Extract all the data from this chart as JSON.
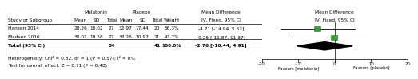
{
  "studies": [
    "Hansen 2014",
    "Madsen 2016"
  ],
  "melatonin_mean": [
    28.26,
    38.01
  ],
  "melatonin_sd": [
    18.02,
    19.58
  ],
  "melatonin_total": [
    27,
    27
  ],
  "placebo_mean": [
    32.97,
    38.26
  ],
  "placebo_sd": [
    17.44,
    20.97
  ],
  "placebo_total": [
    20,
    21
  ],
  "weights": [
    "56.3%",
    "43.7%"
  ],
  "md": [
    -4.71,
    -0.25
  ],
  "ci_low": [
    -14.94,
    -11.87
  ],
  "ci_high": [
    5.52,
    11.37
  ],
  "md_labels": [
    "-4.71 [-14.94, 5.52]",
    "-0.25 [-11.87, 11.37]"
  ],
  "total_n_melatonin": 54,
  "total_n_placebo": 41,
  "total_weight": "100.0%",
  "total_md": -2.76,
  "total_ci_low": -10.44,
  "total_ci_high": 4.91,
  "total_label": "-2.76 [-10.44, 4.91]",
  "heterogeneity_text": "Heterogeneity: Chi² = 0.32, df = 1 (P = 0.57); I² = 0%",
  "test_text": "Test for overall effect: Z = 0.71 (P = 0.48)",
  "axis_min": -20,
  "axis_max": 20,
  "axis_ticks": [
    -20,
    -10,
    0,
    10,
    20
  ],
  "favour_left": "Favours [melatonin]",
  "favour_right": "Favours [placebo]",
  "square_color": "#3a9a3a",
  "diamond_color": "#000000",
  "line_color": "#000000",
  "bg_color": "#ffffff"
}
